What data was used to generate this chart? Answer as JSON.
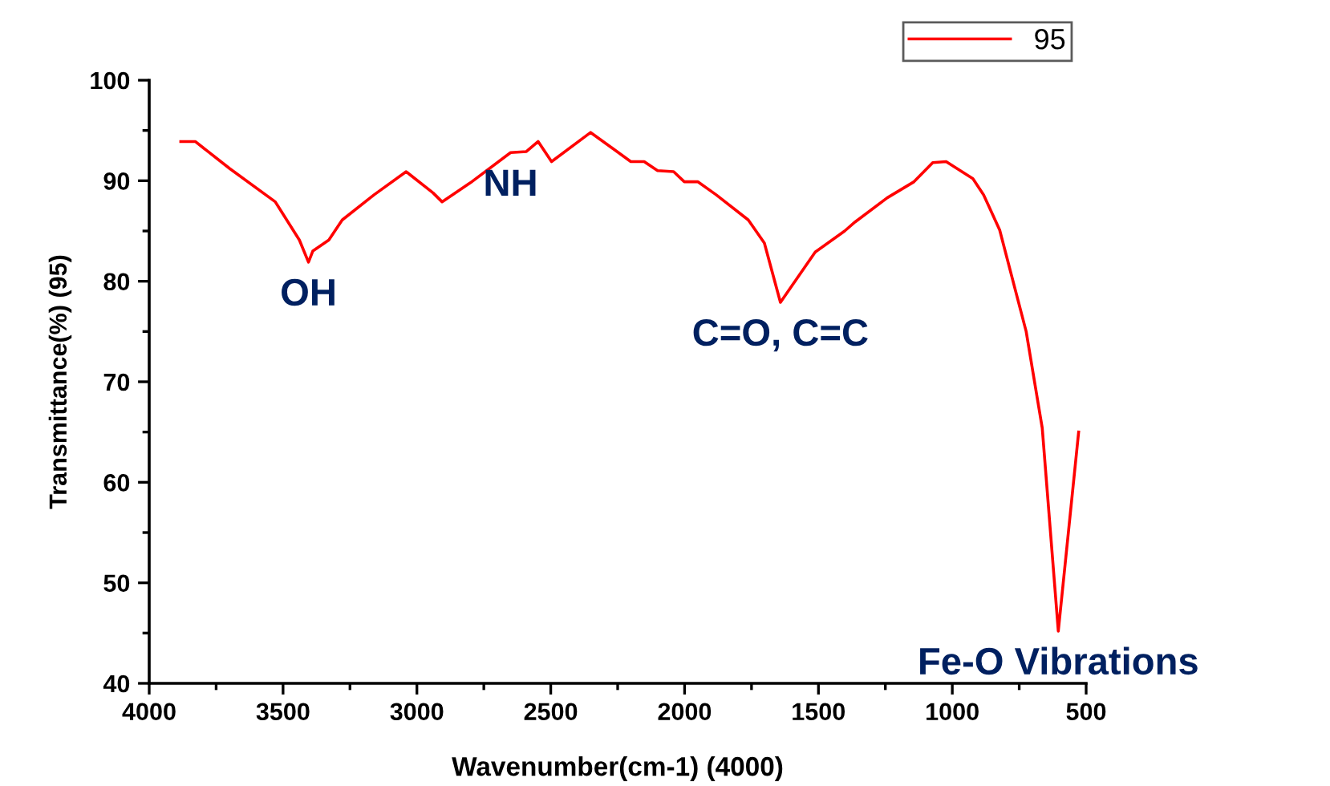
{
  "chart_data": {
    "type": "line",
    "xlabel": "Wavenumber(cm-1) (4000)",
    "ylabel": "Transmittance(%) (95)",
    "xlim": [
      4000,
      500
    ],
    "xticks": [
      4000,
      3500,
      3000,
      2500,
      2000,
      1500,
      1000,
      500
    ],
    "ylim": [
      40,
      100
    ],
    "yticks": [
      40,
      50,
      60,
      70,
      80,
      90,
      100
    ],
    "grid": false,
    "legend": "top right",
    "marker": "none",
    "line_style": "solid",
    "series": [
      {
        "name": "95",
        "color": "#ff0000",
        "x": [
          3882,
          3828,
          3699,
          3529,
          3439,
          3405,
          3389,
          3329,
          3279,
          3160,
          3040,
          2940,
          2906,
          2800,
          2650,
          2591,
          2547,
          2497,
          2351,
          2201,
          2151,
          2101,
          2041,
          2001,
          1951,
          1882,
          1762,
          1702,
          1642,
          1512,
          1402,
          1363,
          1243,
          1143,
          1073,
          1023,
          923,
          883,
          823,
          724,
          664,
          604,
          528
        ],
        "values": [
          93.9,
          93.9,
          91.2,
          87.9,
          84.1,
          81.9,
          83,
          84.1,
          86.1,
          88.6,
          90.9,
          88.8,
          87.9,
          89.8,
          92.8,
          92.9,
          93.9,
          91.9,
          94.8,
          91.9,
          91.9,
          91,
          90.9,
          89.9,
          89.9,
          88.6,
          86.1,
          83.8,
          77.9,
          82.9,
          85,
          85.9,
          88.3,
          89.9,
          91.8,
          91.9,
          90.2,
          88.6,
          85.1,
          75,
          65.4,
          45.2,
          65
        ]
      }
    ],
    "annotations": [
      {
        "text": "OH",
        "x": 3405,
        "y": 81.9
      },
      {
        "text": "NH",
        "x": 2650,
        "y": 92.8
      },
      {
        "text": "C=O, C=C",
        "x": 1642,
        "y": 77.9
      },
      {
        "text": "Fe-O Vibrations",
        "x": 604,
        "y": 45.2
      }
    ]
  }
}
